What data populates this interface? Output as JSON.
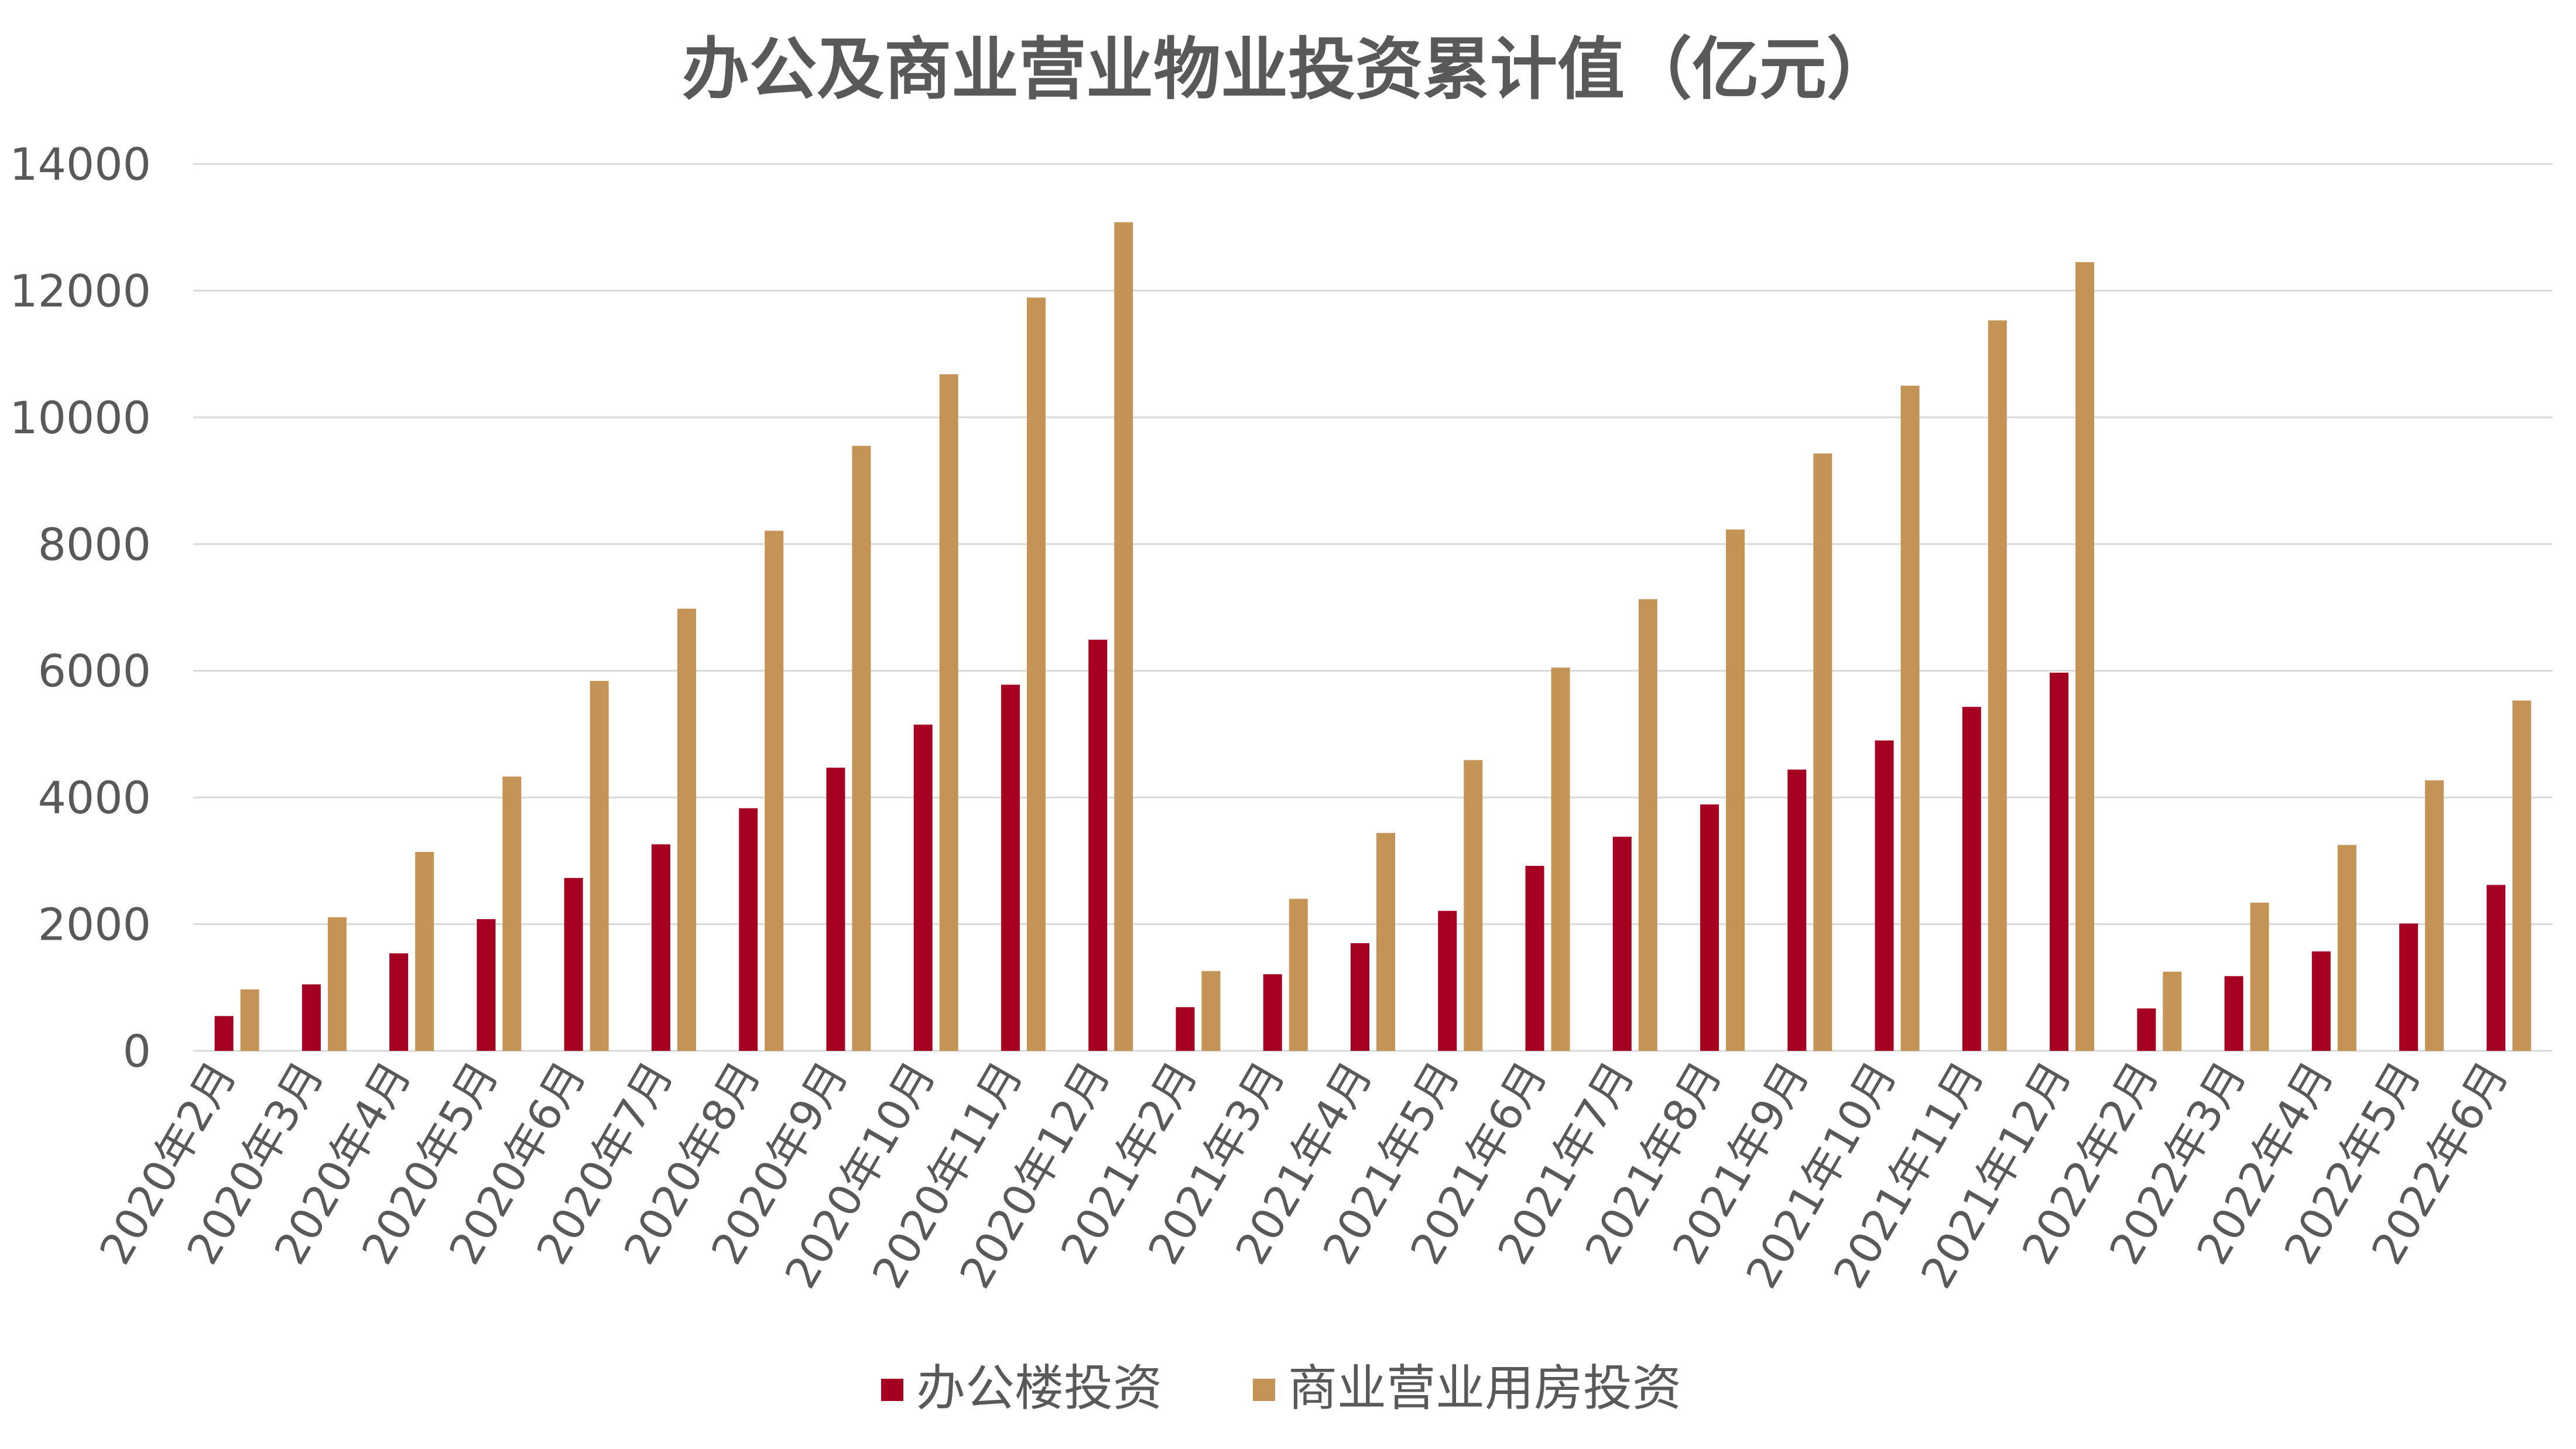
{
  "chart_data": {
    "type": "bar",
    "title": "办公及商业营业物业投资累计值（亿元）",
    "xlabel": "",
    "ylabel": "",
    "ylim": [
      0,
      14000
    ],
    "yticks": [
      0,
      2000,
      4000,
      6000,
      8000,
      10000,
      12000,
      14000
    ],
    "grid": true,
    "legend_position": "bottom",
    "categories": [
      "2020年2月",
      "2020年3月",
      "2020年4月",
      "2020年5月",
      "2020年6月",
      "2020年7月",
      "2020年8月",
      "2020年9月",
      "2020年10月",
      "2020年11月",
      "2020年12月",
      "2021年2月",
      "2021年3月",
      "2021年4月",
      "2021年5月",
      "2021年6月",
      "2021年7月",
      "2021年8月",
      "2021年9月",
      "2021年10月",
      "2021年11月",
      "2021年12月",
      "2022年2月",
      "2022年3月",
      "2022年4月",
      "2022年5月",
      "2022年6月"
    ],
    "series": [
      {
        "name": "办公楼投资",
        "color": "#a50021",
        "values": [
          550,
          1050,
          1540,
          2080,
          2730,
          3260,
          3830,
          4470,
          5150,
          5780,
          6490,
          690,
          1210,
          1700,
          2210,
          2920,
          3380,
          3890,
          4440,
          4900,
          5430,
          5970,
          670,
          1180,
          1570,
          2010,
          2620
        ]
      },
      {
        "name": "商业营业用房投资",
        "color": "#c49356",
        "values": [
          970,
          2110,
          3140,
          4330,
          5840,
          6980,
          8210,
          9550,
          10680,
          11890,
          13080,
          1260,
          2400,
          3440,
          4590,
          6050,
          7130,
          8230,
          9430,
          10500,
          11530,
          12450,
          1250,
          2340,
          3250,
          4270,
          5530
        ]
      }
    ]
  }
}
